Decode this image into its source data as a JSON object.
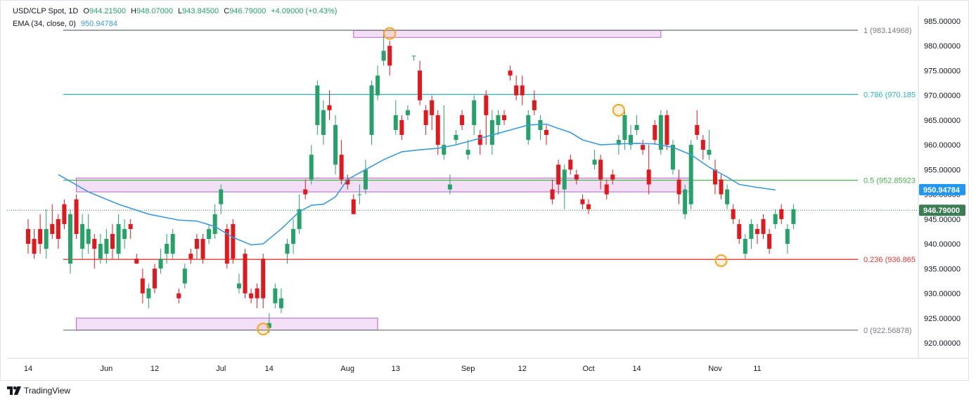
{
  "legend": {
    "symbol": "USD/CLP Spot, 1D",
    "o_label": "O",
    "o_value": "944.21500",
    "h_label": "H",
    "h_value": "948.07000",
    "l_label": "L",
    "l_value": "943.84500",
    "c_label": "C",
    "c_value": "946.79000",
    "change": "+4.09000 (+0.43%)",
    "ema_label": "EMA (34, close, 0)",
    "ema_value": "950.94784"
  },
  "brand": "TradingView",
  "colors": {
    "up": "#26a269",
    "down": "#e0191e",
    "ema": "#3a9bdc",
    "fib_top": "#787b86",
    "fib_786": "#27b5c1",
    "fib_05": "#4caf50",
    "fib_236": "#e53935",
    "zone_fill": "#f3e0f7",
    "zone_stroke": "#b366c9",
    "marker": "#f5a623",
    "last_price_bg": "#3a7d52",
    "ema_price_bg": "#2196f3"
  },
  "chart_data": {
    "type": "candlestick",
    "title": "USD/CLP Spot, 1D",
    "ylim": [
      917,
      986
    ],
    "y_ticks": [
      920,
      925,
      930,
      935,
      940,
      945,
      950,
      955,
      960,
      965,
      970,
      975,
      980,
      985
    ],
    "y_tick_labels": [
      "920.00000",
      "925.00000",
      "930.00000",
      "935.00000",
      "940.00000",
      "945.00000",
      "950.00000",
      "955.00000",
      "960.00000",
      "965.00000",
      "970.00000",
      "975.00000",
      "980.00000",
      "985.00000"
    ],
    "x_tick_labels": [
      {
        "label": "14",
        "index": 0
      },
      {
        "label": "Jun",
        "index": 13
      },
      {
        "label": "12",
        "index": 21
      },
      {
        "label": "Jul",
        "index": 32
      },
      {
        "label": "14",
        "index": 40
      },
      {
        "label": "Aug",
        "index": 53
      },
      {
        "label": "13",
        "index": 61
      },
      {
        "label": "Sep",
        "index": 73
      },
      {
        "label": "12",
        "index": 82
      },
      {
        "label": "Oct",
        "index": 93
      },
      {
        "label": "14",
        "index": 101
      },
      {
        "label": "Nov",
        "index": 114
      },
      {
        "label": "11",
        "index": 121
      }
    ],
    "candles": [
      [
        943,
        940,
        945,
        938
      ],
      [
        941,
        938,
        943,
        937
      ],
      [
        943,
        940,
        946,
        938
      ],
      [
        939,
        943,
        947,
        937
      ],
      [
        944,
        942,
        948,
        941
      ],
      [
        945,
        941,
        946,
        939
      ],
      [
        948,
        944,
        949,
        943
      ],
      [
        936,
        946,
        947,
        934
      ],
      [
        949,
        942,
        950,
        941
      ],
      [
        939,
        944,
        946,
        937
      ],
      [
        940,
        943,
        946,
        938
      ],
      [
        941,
        939,
        942,
        935
      ],
      [
        937,
        940,
        942,
        936
      ],
      [
        938,
        941,
        943,
        936
      ],
      [
        942,
        939,
        944,
        937
      ],
      [
        938,
        944,
        946,
        937
      ],
      [
        941,
        943,
        945,
        939
      ],
      [
        944,
        943,
        945,
        941
      ],
      [
        937,
        936,
        938,
        936
      ],
      [
        933,
        930,
        935,
        928
      ],
      [
        929,
        931,
        932,
        927
      ],
      [
        935,
        931,
        936,
        930
      ],
      [
        935,
        937,
        939,
        934
      ],
      [
        938,
        940,
        942,
        936
      ],
      [
        938,
        942,
        943,
        937
      ],
      [
        930,
        929,
        931,
        928
      ],
      [
        932,
        935,
        936,
        931
      ],
      [
        938,
        937,
        939,
        936
      ],
      [
        941,
        939,
        942,
        937
      ],
      [
        941,
        937,
        942,
        936
      ],
      [
        941,
        943,
        944,
        940
      ],
      [
        942,
        946,
        948,
        941
      ],
      [
        948,
        951,
        952,
        946
      ],
      [
        943,
        936,
        944,
        935
      ],
      [
        944,
        937,
        945,
        936
      ],
      [
        931,
        932,
        934,
        930
      ],
      [
        938,
        930,
        939,
        929
      ],
      [
        930,
        929,
        931,
        928
      ],
      [
        931,
        929,
        932,
        927
      ],
      [
        937,
        929,
        938,
        927
      ],
      [
        923,
        924,
        926,
        922
      ],
      [
        928,
        931,
        932,
        927
      ],
      [
        927,
        929,
        931,
        926
      ],
      [
        938,
        940,
        941,
        936
      ],
      [
        940,
        943,
        945,
        938
      ],
      [
        943,
        947,
        950,
        942
      ],
      [
        951,
        950,
        953,
        949
      ],
      [
        953,
        958,
        960,
        952
      ],
      [
        964,
        972,
        973,
        962
      ],
      [
        962,
        967,
        969,
        960
      ],
      [
        968,
        967,
        971,
        965
      ],
      [
        956,
        964,
        966,
        954
      ],
      [
        958,
        953,
        961,
        952
      ],
      [
        953,
        952,
        954,
        951
      ],
      [
        949,
        946,
        950,
        946
      ],
      [
        950,
        950,
        952,
        948
      ],
      [
        951,
        955,
        957,
        950
      ],
      [
        962,
        972,
        973,
        960
      ],
      [
        970,
        974,
        976,
        969
      ],
      [
        977,
        979,
        983,
        976
      ],
      [
        980,
        976,
        981,
        974
      ],
      [
        963,
        966,
        969,
        962
      ],
      [
        965,
        962,
        966,
        961
      ],
      [
        966,
        967,
        968,
        965
      ],
      [
        978,
        978,
        978,
        977
      ],
      [
        975,
        969,
        977,
        968
      ],
      [
        967,
        964,
        968,
        962
      ],
      [
        969,
        966,
        970,
        963
      ],
      [
        966,
        960,
        967,
        958
      ],
      [
        958,
        960,
        968,
        957
      ],
      [
        951,
        952,
        954,
        950
      ],
      [
        961,
        962,
        963,
        960
      ],
      [
        966,
        964,
        967,
        963
      ],
      [
        958,
        959,
        961,
        957
      ],
      [
        964,
        969,
        970,
        962
      ],
      [
        962,
        960,
        963,
        958
      ],
      [
        970,
        966,
        971,
        960
      ],
      [
        960,
        965,
        967,
        958
      ],
      [
        964,
        966,
        967,
        962
      ],
      [
        966,
        965,
        967,
        964
      ],
      [
        975,
        974,
        976,
        973
      ],
      [
        972,
        970,
        974,
        969
      ],
      [
        972,
        970,
        974,
        968
      ],
      [
        961,
        966,
        967,
        960
      ],
      [
        969,
        967,
        971,
        966
      ],
      [
        963,
        965,
        966,
        961
      ],
      [
        963,
        962,
        964,
        960
      ],
      [
        951,
        949,
        953,
        948
      ],
      [
        956,
        952,
        957,
        950
      ],
      [
        951,
        955,
        956,
        947
      ],
      [
        957,
        955,
        958,
        954
      ],
      [
        954,
        953,
        955,
        952
      ],
      [
        949,
        948,
        950,
        947
      ],
      [
        948,
        947,
        949,
        946
      ],
      [
        956,
        957,
        959,
        955
      ],
      [
        957,
        953,
        958,
        951
      ],
      [
        952,
        950,
        953,
        949
      ],
      [
        954,
        953,
        955,
        952
      ],
      [
        960,
        961,
        962,
        958
      ],
      [
        961,
        966,
        967,
        959
      ],
      [
        960,
        962,
        964,
        959
      ],
      [
        963,
        964,
        966,
        962
      ],
      [
        960,
        959,
        961,
        958
      ],
      [
        955,
        952,
        960,
        950
      ],
      [
        964,
        961,
        965,
        960
      ],
      [
        959,
        966,
        967,
        958
      ],
      [
        966,
        960,
        967,
        959
      ],
      [
        955,
        960,
        961,
        954
      ],
      [
        953,
        950,
        955,
        948
      ],
      [
        946,
        951,
        952,
        945
      ],
      [
        948,
        960,
        961,
        947
      ],
      [
        964,
        962,
        967,
        961
      ],
      [
        961,
        959,
        962,
        957
      ],
      [
        958,
        959,
        963,
        957
      ],
      [
        955,
        952,
        957,
        950
      ],
      [
        953,
        950,
        954,
        949
      ],
      [
        948,
        951,
        952,
        947
      ],
      [
        947,
        945,
        948,
        944
      ],
      [
        944,
        941,
        945,
        940
      ],
      [
        938,
        941,
        942,
        937
      ],
      [
        941,
        944,
        945,
        939
      ],
      [
        943,
        942,
        944,
        940
      ],
      [
        945,
        942,
        946,
        941
      ],
      [
        942,
        939,
        943,
        938
      ],
      [
        944,
        946,
        947,
        943
      ],
      [
        947,
        945,
        948,
        944
      ],
      [
        940,
        943,
        944,
        938
      ],
      [
        944,
        947,
        948,
        943
      ]
    ],
    "ema": [
      [
        5,
        954.0
      ],
      [
        10,
        950.5
      ],
      [
        15,
        948.0
      ],
      [
        20,
        946.0
      ],
      [
        25,
        944.8
      ],
      [
        28,
        944.6
      ],
      [
        31,
        943.5
      ],
      [
        34,
        941.3
      ],
      [
        37,
        939.8
      ],
      [
        39,
        940.0
      ],
      [
        42,
        943.0
      ],
      [
        45,
        946.5
      ],
      [
        47,
        947.8
      ],
      [
        49,
        948.0
      ],
      [
        51,
        949.5
      ],
      [
        53,
        953.0
      ],
      [
        56,
        955.0
      ],
      [
        59,
        957.0
      ],
      [
        62,
        958.6
      ],
      [
        65,
        959.0
      ],
      [
        68,
        959.3
      ],
      [
        71,
        960.0
      ],
      [
        74,
        961.0
      ],
      [
        77,
        962.0
      ],
      [
        80,
        963.0
      ],
      [
        83,
        964.0
      ],
      [
        86,
        964.2
      ],
      [
        88,
        963.3
      ],
      [
        90,
        962.5
      ],
      [
        92,
        961.0
      ],
      [
        95,
        960.0
      ],
      [
        98,
        960.2
      ],
      [
        101,
        960.3
      ],
      [
        104,
        960.2
      ],
      [
        107,
        959.5
      ],
      [
        110,
        958.0
      ],
      [
        113,
        955.5
      ],
      [
        116,
        953.5
      ],
      [
        118,
        952.0
      ],
      [
        121,
        951.4
      ],
      [
        124,
        950.9
      ]
    ],
    "fib_levels": [
      {
        "label": "1 (983.14968)",
        "value": 983.14968
      },
      {
        "label": "0.786 (970.185",
        "value": 970.185
      },
      {
        "label": "0.5 (952.85923",
        "value": 952.85923
      },
      {
        "label": "0.236 (936.865",
        "value": 936.865
      },
      {
        "label": "0 (922.56878)",
        "value": 922.56878
      }
    ],
    "zones": [
      {
        "from_index": 54,
        "to_index": 105,
        "low": 981.7,
        "high": 983.1
      },
      {
        "from_index": 8,
        "to_index": 110,
        "low": 950.5,
        "high": 953.3
      },
      {
        "from_index": 8,
        "to_index": 58,
        "low": 922.6,
        "high": 925.0
      }
    ],
    "markers": [
      {
        "index": 60,
        "value": 982.5
      },
      {
        "index": 39,
        "value": 922.8
      },
      {
        "index": 98,
        "value": 967.0
      },
      {
        "index": 115,
        "value": 936.6
      }
    ],
    "last_price": {
      "value": 946.79,
      "label": "946.79000"
    },
    "ema_price": {
      "value": 950.94784,
      "label": "950.94784"
    }
  }
}
